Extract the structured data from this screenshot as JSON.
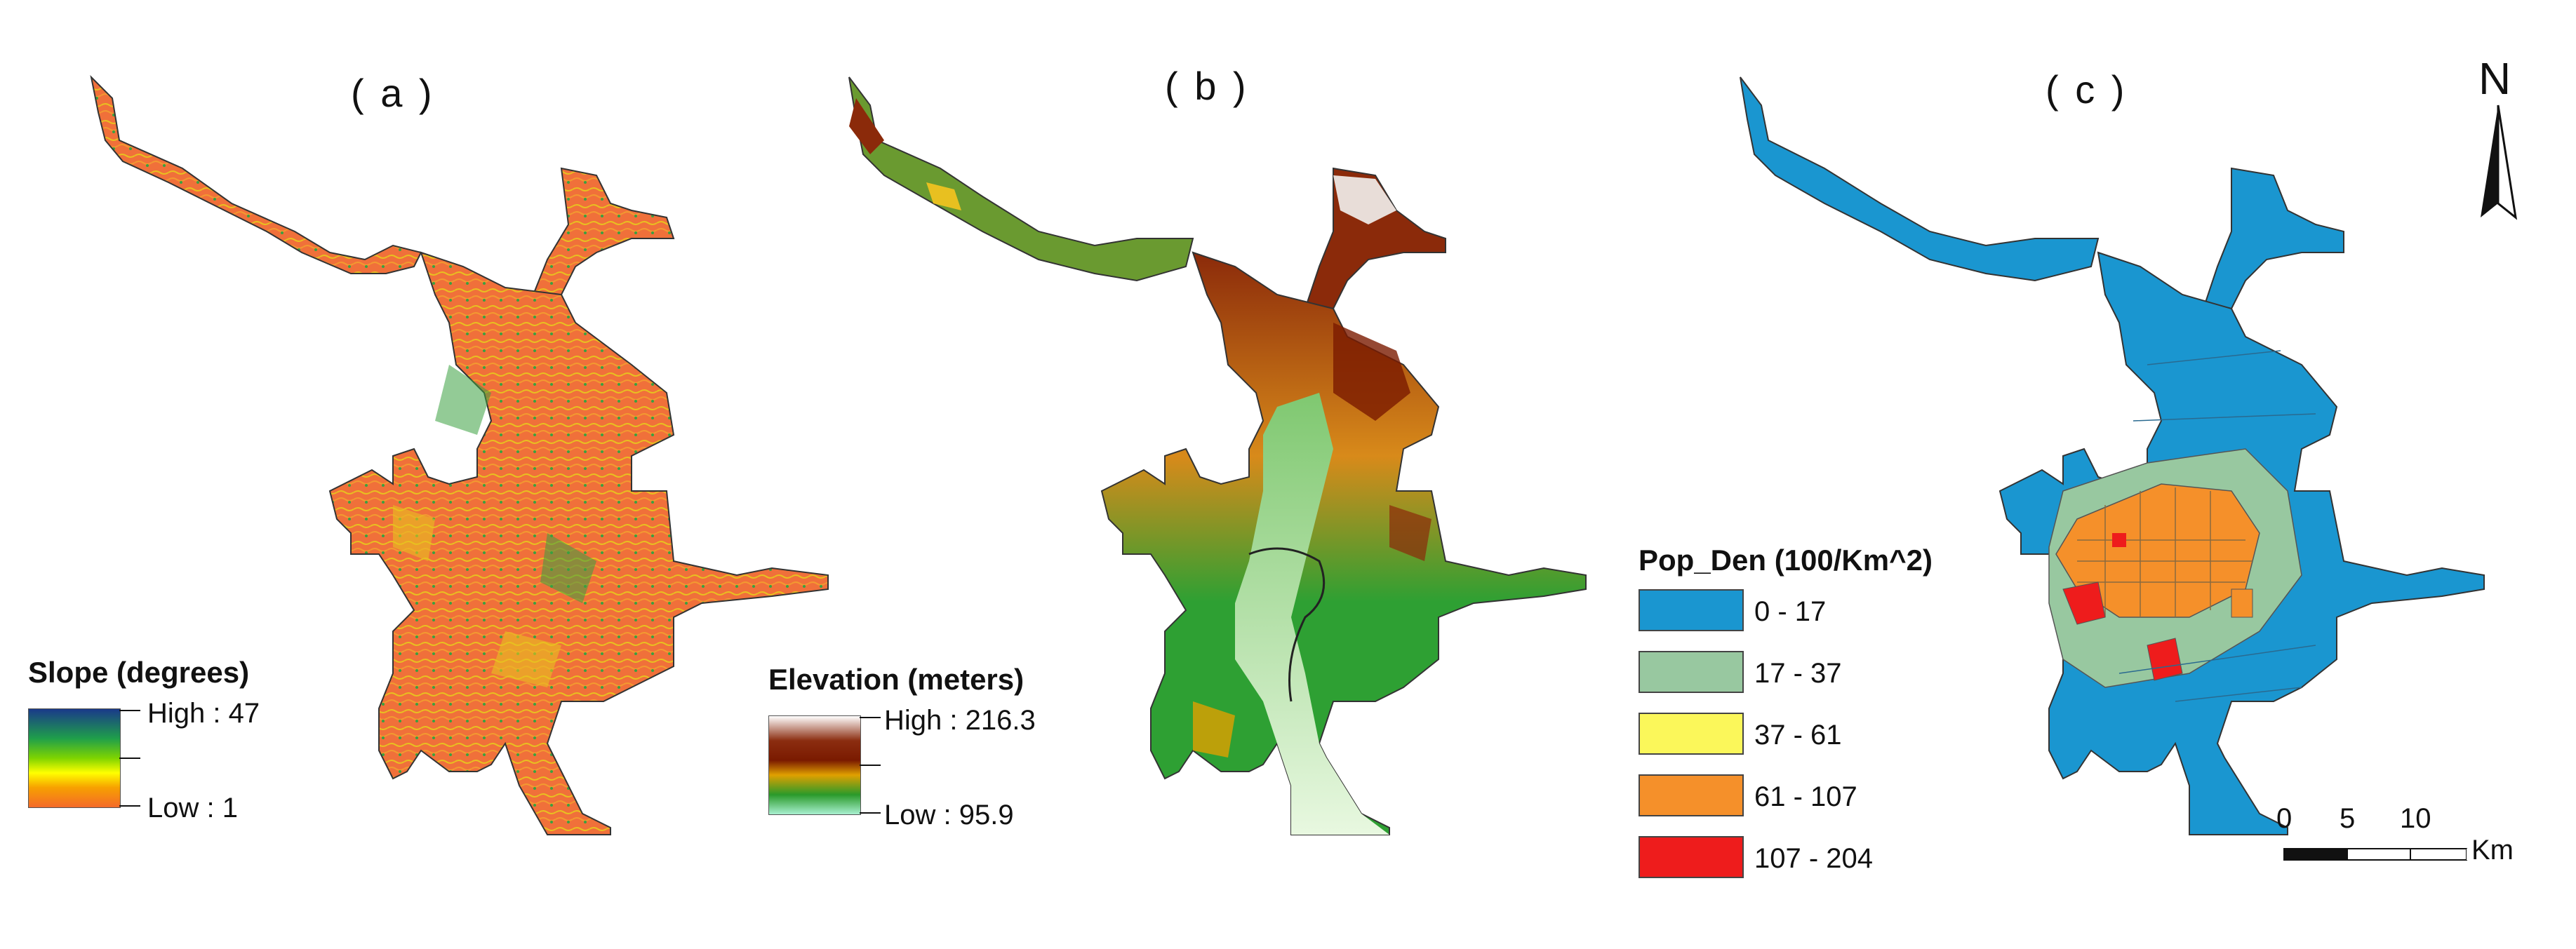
{
  "panels": {
    "a": {
      "label": "( a )"
    },
    "b": {
      "label": "( b )"
    },
    "c": {
      "label": "( c )"
    }
  },
  "slope_legend": {
    "title": "Slope (degrees)",
    "high": "High : 47",
    "low": "Low : 1",
    "ramp_colors": [
      "#1a3a8a",
      "#1f9f4a",
      "#7fd400",
      "#ffff00",
      "#f7a000",
      "#f46a2a"
    ]
  },
  "elevation_legend": {
    "title": "Elevation (meters)",
    "high": "High : 216.3",
    "low": "Low : 95.9",
    "ramp_colors": [
      "#ffffff",
      "#8b2d10",
      "#7a1a00",
      "#e0a000",
      "#2a9a2a",
      "#a8f0d0"
    ]
  },
  "pop_legend": {
    "title": "Pop_Den (100/Km^2)",
    "classes": [
      {
        "label": "0 - 17",
        "color": "#1a96d0"
      },
      {
        "label": "17 - 37",
        "color": "#98c8a0"
      },
      {
        "label": "37 - 61",
        "color": "#fbf75a"
      },
      {
        "label": "61 - 107",
        "color": "#f5902a"
      },
      {
        "label": "107 - 204",
        "color": "#ee1c1c"
      }
    ]
  },
  "north_arrow": {
    "label": "N"
  },
  "scale_bar": {
    "ticks": [
      "0",
      "5",
      "10"
    ],
    "unit": "Km"
  },
  "colors": {
    "slope_base": "#f0703a",
    "slope_green": "#3aa040",
    "slope_yellow": "#e8c020",
    "elev_green": "#2ea033",
    "elev_light": "#bfe8b0",
    "elev_brown": "#8b2a0a",
    "elev_orange": "#d88a1a",
    "pop_blue": "#1a96d0",
    "pop_green": "#98c8a0",
    "pop_orange": "#f5902a",
    "pop_red": "#ee1c1c",
    "outline": "#333333"
  }
}
